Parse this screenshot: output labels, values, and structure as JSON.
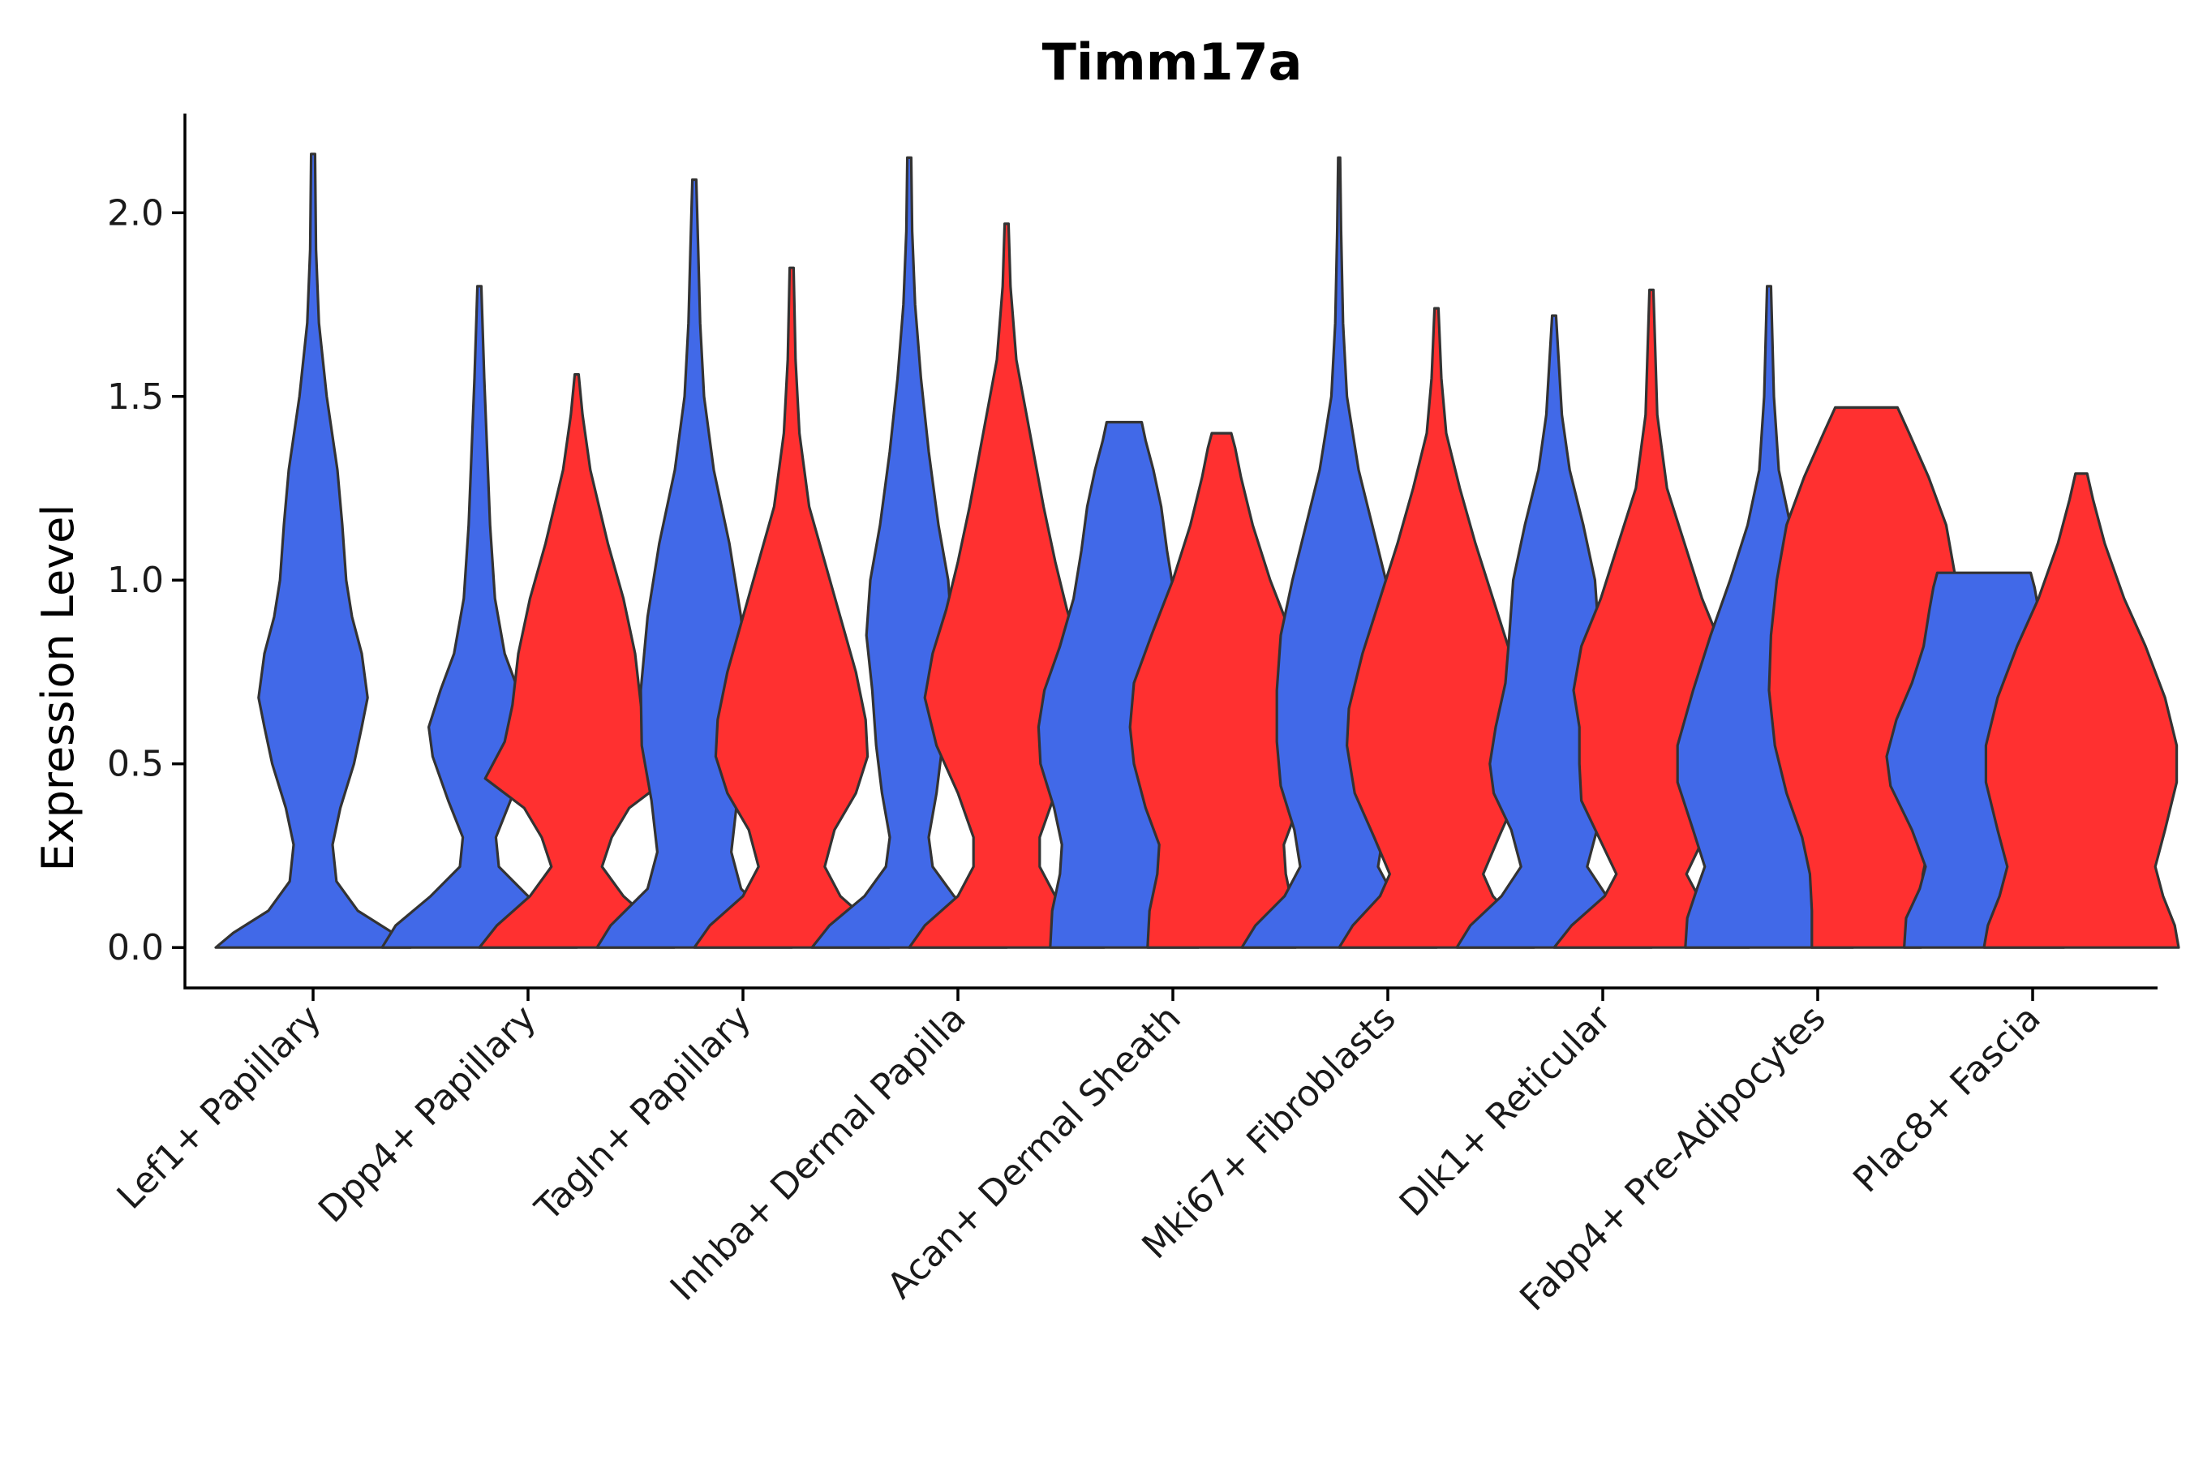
{
  "chart_data": {
    "type": "violin",
    "title": "Timm17a",
    "xlabel": "",
    "ylabel": "Expression Level",
    "ylim": [
      -0.11,
      2.27
    ],
    "yticks": [
      0.0,
      0.5,
      1.0,
      1.5,
      2.0
    ],
    "ytick_labels": [
      "0.0",
      "0.5",
      "1.0",
      "1.5",
      "2.0"
    ],
    "legend": "none",
    "grid": false,
    "colors": {
      "group_a": "#4169E8",
      "group_b": "#FF3030",
      "outline": "#333333"
    },
    "categories": [
      "Lef1+ Papillary",
      "Dpp4+ Papillary",
      "Tagln+ Papillary",
      "Inhba+ Dermal Papilla",
      "Acan+ Dermal Sheath",
      "Mki67+ Fibroblasts",
      "Dlk1+ Reticular",
      "Fabp4+ Pre-Adipocytes",
      "Plac8+ Fascia"
    ],
    "violins": [
      {
        "category": "Lef1+ Papillary",
        "group": "blue",
        "max": 2.16,
        "profile": [
          [
            0.0,
            1.0
          ],
          [
            0.04,
            0.82
          ],
          [
            0.1,
            0.46
          ],
          [
            0.18,
            0.24
          ],
          [
            0.28,
            0.2
          ],
          [
            0.38,
            0.28
          ],
          [
            0.5,
            0.42
          ],
          [
            0.6,
            0.5
          ],
          [
            0.68,
            0.56
          ],
          [
            0.8,
            0.5
          ],
          [
            0.9,
            0.4
          ],
          [
            1.0,
            0.34
          ],
          [
            1.15,
            0.3
          ],
          [
            1.3,
            0.25
          ],
          [
            1.5,
            0.14
          ],
          [
            1.7,
            0.06
          ],
          [
            1.9,
            0.03
          ],
          [
            2.16,
            0.02
          ]
        ]
      },
      {
        "category": "Dpp4+ Papillary",
        "group": "blue",
        "max": 1.8,
        "profile": [
          [
            0.0,
            1.0
          ],
          [
            0.06,
            0.86
          ],
          [
            0.14,
            0.5
          ],
          [
            0.22,
            0.2
          ],
          [
            0.3,
            0.17
          ],
          [
            0.4,
            0.32
          ],
          [
            0.52,
            0.48
          ],
          [
            0.6,
            0.52
          ],
          [
            0.7,
            0.4
          ],
          [
            0.8,
            0.26
          ],
          [
            0.95,
            0.16
          ],
          [
            1.15,
            0.11
          ],
          [
            1.35,
            0.08
          ],
          [
            1.55,
            0.05
          ],
          [
            1.8,
            0.02
          ]
        ]
      },
      {
        "category": "Dpp4+ Papillary",
        "group": "red",
        "max": 1.56,
        "profile": [
          [
            0.0,
            1.0
          ],
          [
            0.06,
            0.82
          ],
          [
            0.14,
            0.48
          ],
          [
            0.22,
            0.26
          ],
          [
            0.3,
            0.36
          ],
          [
            0.38,
            0.54
          ],
          [
            0.46,
            0.94
          ],
          [
            0.56,
            0.74
          ],
          [
            0.66,
            0.66
          ],
          [
            0.8,
            0.6
          ],
          [
            0.95,
            0.48
          ],
          [
            1.1,
            0.32
          ],
          [
            1.3,
            0.14
          ],
          [
            1.45,
            0.06
          ],
          [
            1.56,
            0.02
          ]
        ]
      },
      {
        "category": "Tagln+ Papillary",
        "group": "blue",
        "max": 2.09,
        "profile": [
          [
            0.0,
            1.0
          ],
          [
            0.06,
            0.86
          ],
          [
            0.16,
            0.48
          ],
          [
            0.26,
            0.38
          ],
          [
            0.4,
            0.44
          ],
          [
            0.55,
            0.54
          ],
          [
            0.7,
            0.55
          ],
          [
            0.9,
            0.48
          ],
          [
            1.1,
            0.36
          ],
          [
            1.3,
            0.2
          ],
          [
            1.5,
            0.1
          ],
          [
            1.7,
            0.06
          ],
          [
            1.9,
            0.04
          ],
          [
            2.09,
            0.02
          ]
        ]
      },
      {
        "category": "Tagln+ Papillary",
        "group": "red",
        "max": 1.85,
        "profile": [
          [
            0.0,
            1.0
          ],
          [
            0.06,
            0.84
          ],
          [
            0.14,
            0.5
          ],
          [
            0.22,
            0.34
          ],
          [
            0.32,
            0.44
          ],
          [
            0.42,
            0.66
          ],
          [
            0.52,
            0.78
          ],
          [
            0.62,
            0.76
          ],
          [
            0.75,
            0.66
          ],
          [
            0.9,
            0.5
          ],
          [
            1.05,
            0.34
          ],
          [
            1.2,
            0.18
          ],
          [
            1.4,
            0.08
          ],
          [
            1.6,
            0.04
          ],
          [
            1.85,
            0.02
          ]
        ]
      },
      {
        "category": "Inhba+ Dermal Papilla",
        "group": "blue",
        "max": 2.15,
        "profile": [
          [
            0.0,
            1.0
          ],
          [
            0.06,
            0.82
          ],
          [
            0.14,
            0.46
          ],
          [
            0.22,
            0.24
          ],
          [
            0.3,
            0.2
          ],
          [
            0.42,
            0.28
          ],
          [
            0.55,
            0.34
          ],
          [
            0.7,
            0.38
          ],
          [
            0.85,
            0.44
          ],
          [
            1.0,
            0.4
          ],
          [
            1.15,
            0.3
          ],
          [
            1.35,
            0.2
          ],
          [
            1.55,
            0.12
          ],
          [
            1.75,
            0.06
          ],
          [
            1.95,
            0.03
          ],
          [
            2.15,
            0.02
          ]
        ]
      },
      {
        "category": "Inhba+ Dermal Papilla",
        "group": "red",
        "max": 1.97,
        "profile": [
          [
            0.0,
            1.0
          ],
          [
            0.06,
            0.84
          ],
          [
            0.14,
            0.5
          ],
          [
            0.22,
            0.34
          ],
          [
            0.3,
            0.34
          ],
          [
            0.42,
            0.5
          ],
          [
            0.55,
            0.72
          ],
          [
            0.68,
            0.84
          ],
          [
            0.8,
            0.76
          ],
          [
            0.92,
            0.62
          ],
          [
            1.05,
            0.5
          ],
          [
            1.2,
            0.38
          ],
          [
            1.4,
            0.24
          ],
          [
            1.6,
            0.1
          ],
          [
            1.8,
            0.04
          ],
          [
            1.97,
            0.02
          ]
        ]
      },
      {
        "category": "Acan+ Dermal Sheath",
        "group": "blue",
        "max": 1.43,
        "profile": [
          [
            0.0,
            0.76
          ],
          [
            0.1,
            0.74
          ],
          [
            0.2,
            0.66
          ],
          [
            0.28,
            0.64
          ],
          [
            0.38,
            0.72
          ],
          [
            0.5,
            0.86
          ],
          [
            0.6,
            0.88
          ],
          [
            0.7,
            0.82
          ],
          [
            0.82,
            0.66
          ],
          [
            0.95,
            0.52
          ],
          [
            1.08,
            0.44
          ],
          [
            1.2,
            0.38
          ],
          [
            1.3,
            0.3
          ],
          [
            1.38,
            0.22
          ],
          [
            1.43,
            0.18
          ]
        ]
      },
      {
        "category": "Acan+ Dermal Sheath",
        "group": "red",
        "max": 1.4,
        "profile": [
          [
            0.0,
            0.76
          ],
          [
            0.1,
            0.74
          ],
          [
            0.2,
            0.66
          ],
          [
            0.28,
            0.64
          ],
          [
            0.38,
            0.78
          ],
          [
            0.5,
            0.9
          ],
          [
            0.6,
            0.94
          ],
          [
            0.72,
            0.9
          ],
          [
            0.85,
            0.72
          ],
          [
            1.0,
            0.5
          ],
          [
            1.15,
            0.32
          ],
          [
            1.28,
            0.2
          ],
          [
            1.36,
            0.14
          ],
          [
            1.4,
            0.1
          ]
        ]
      },
      {
        "category": "Mki67+ Fibroblasts",
        "group": "blue",
        "max": 2.15,
        "profile": [
          [
            0.0,
            1.0
          ],
          [
            0.06,
            0.86
          ],
          [
            0.14,
            0.56
          ],
          [
            0.22,
            0.4
          ],
          [
            0.32,
            0.46
          ],
          [
            0.44,
            0.6
          ],
          [
            0.56,
            0.64
          ],
          [
            0.7,
            0.64
          ],
          [
            0.85,
            0.6
          ],
          [
            1.0,
            0.48
          ],
          [
            1.15,
            0.34
          ],
          [
            1.3,
            0.2
          ],
          [
            1.5,
            0.08
          ],
          [
            1.7,
            0.04
          ],
          [
            1.95,
            0.02
          ],
          [
            2.15,
            0.01
          ]
        ]
      },
      {
        "category": "Mki67+ Fibroblasts",
        "group": "red",
        "max": 1.74,
        "profile": [
          [
            0.0,
            1.0
          ],
          [
            0.06,
            0.86
          ],
          [
            0.14,
            0.58
          ],
          [
            0.2,
            0.48
          ],
          [
            0.3,
            0.64
          ],
          [
            0.42,
            0.84
          ],
          [
            0.55,
            0.92
          ],
          [
            0.65,
            0.9
          ],
          [
            0.8,
            0.76
          ],
          [
            0.95,
            0.58
          ],
          [
            1.1,
            0.4
          ],
          [
            1.25,
            0.24
          ],
          [
            1.4,
            0.1
          ],
          [
            1.55,
            0.05
          ],
          [
            1.74,
            0.02
          ]
        ]
      },
      {
        "category": "Dlk1+ Reticular",
        "group": "blue",
        "max": 1.72,
        "profile": [
          [
            0.0,
            1.0
          ],
          [
            0.06,
            0.86
          ],
          [
            0.14,
            0.54
          ],
          [
            0.22,
            0.34
          ],
          [
            0.32,
            0.44
          ],
          [
            0.42,
            0.62
          ],
          [
            0.5,
            0.66
          ],
          [
            0.6,
            0.6
          ],
          [
            0.72,
            0.5
          ],
          [
            0.85,
            0.46
          ],
          [
            1.0,
            0.42
          ],
          [
            1.15,
            0.3
          ],
          [
            1.3,
            0.16
          ],
          [
            1.45,
            0.08
          ],
          [
            1.72,
            0.02
          ]
        ]
      },
      {
        "category": "Dlk1+ Reticular",
        "group": "red",
        "max": 1.79,
        "profile": [
          [
            0.0,
            1.0
          ],
          [
            0.06,
            0.82
          ],
          [
            0.14,
            0.48
          ],
          [
            0.2,
            0.36
          ],
          [
            0.3,
            0.54
          ],
          [
            0.4,
            0.72
          ],
          [
            0.5,
            0.74
          ],
          [
            0.6,
            0.74
          ],
          [
            0.7,
            0.8
          ],
          [
            0.82,
            0.72
          ],
          [
            0.95,
            0.52
          ],
          [
            1.1,
            0.34
          ],
          [
            1.25,
            0.16
          ],
          [
            1.45,
            0.06
          ],
          [
            1.79,
            0.02
          ]
        ]
      },
      {
        "category": "Fabp4+ Pre-Adipocytes",
        "group": "blue",
        "max": 1.8,
        "profile": [
          [
            0.0,
            0.86
          ],
          [
            0.08,
            0.84
          ],
          [
            0.16,
            0.74
          ],
          [
            0.22,
            0.66
          ],
          [
            0.32,
            0.78
          ],
          [
            0.45,
            0.94
          ],
          [
            0.55,
            0.94
          ],
          [
            0.7,
            0.78
          ],
          [
            0.85,
            0.6
          ],
          [
            1.0,
            0.4
          ],
          [
            1.15,
            0.22
          ],
          [
            1.3,
            0.1
          ],
          [
            1.5,
            0.05
          ],
          [
            1.8,
            0.02
          ]
        ]
      },
      {
        "category": "Fabp4+ Pre-Adipocytes",
        "group": "red",
        "max": 1.47,
        "profile": [
          [
            0.0,
            0.56
          ],
          [
            0.1,
            0.56
          ],
          [
            0.2,
            0.58
          ],
          [
            0.3,
            0.66
          ],
          [
            0.42,
            0.82
          ],
          [
            0.55,
            0.94
          ],
          [
            0.7,
            1.0
          ],
          [
            0.85,
            0.98
          ],
          [
            1.0,
            0.92
          ],
          [
            1.15,
            0.82
          ],
          [
            1.28,
            0.64
          ],
          [
            1.4,
            0.44
          ],
          [
            1.47,
            0.32
          ]
        ]
      },
      {
        "category": "Plac8+ Fascia",
        "group": "blue",
        "max": 1.02,
        "profile": [
          [
            0.0,
            0.82
          ],
          [
            0.08,
            0.8
          ],
          [
            0.16,
            0.66
          ],
          [
            0.22,
            0.6
          ],
          [
            0.32,
            0.74
          ],
          [
            0.44,
            0.96
          ],
          [
            0.52,
            1.0
          ],
          [
            0.62,
            0.9
          ],
          [
            0.72,
            0.74
          ],
          [
            0.82,
            0.62
          ],
          [
            0.92,
            0.56
          ],
          [
            0.98,
            0.52
          ],
          [
            1.02,
            0.48
          ]
        ]
      },
      {
        "category": "Plac8+ Fascia",
        "group": "red",
        "max": 1.29,
        "profile": [
          [
            0.0,
            1.0
          ],
          [
            0.06,
            0.96
          ],
          [
            0.14,
            0.84
          ],
          [
            0.22,
            0.76
          ],
          [
            0.32,
            0.86
          ],
          [
            0.45,
            0.98
          ],
          [
            0.55,
            0.98
          ],
          [
            0.68,
            0.86
          ],
          [
            0.82,
            0.66
          ],
          [
            0.95,
            0.44
          ],
          [
            1.1,
            0.24
          ],
          [
            1.22,
            0.12
          ],
          [
            1.29,
            0.06
          ]
        ]
      }
    ]
  }
}
